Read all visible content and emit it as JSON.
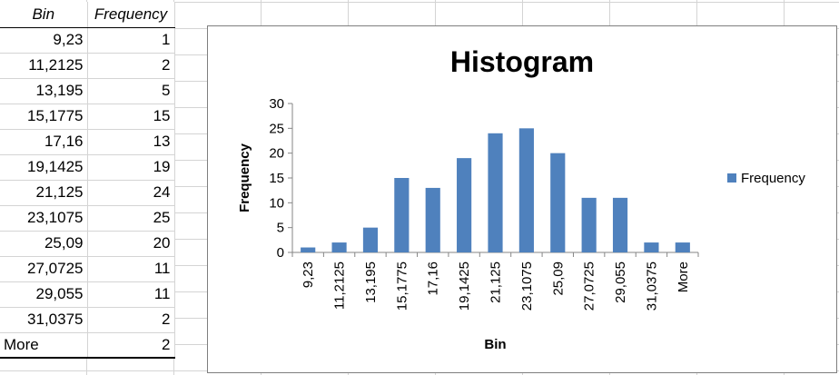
{
  "table": {
    "headers": [
      "Bin",
      "Frequency"
    ],
    "rows": [
      [
        "9,23",
        "1"
      ],
      [
        "11,2125",
        "2"
      ],
      [
        "13,195",
        "5"
      ],
      [
        "15,1775",
        "15"
      ],
      [
        "17,16",
        "13"
      ],
      [
        "19,1425",
        "19"
      ],
      [
        "21,125",
        "24"
      ],
      [
        "23,1075",
        "25"
      ],
      [
        "25,09",
        "20"
      ],
      [
        "27,0725",
        "11"
      ],
      [
        "29,055",
        "11"
      ],
      [
        "31,0375",
        "2"
      ],
      [
        "More",
        "2"
      ]
    ]
  },
  "chart_data": {
    "type": "bar",
    "title": "Histogram",
    "xlabel": "Bin",
    "ylabel": "Frequency",
    "categories": [
      "9,23",
      "11,2125",
      "13,195",
      "15,1775",
      "17,16",
      "19,1425",
      "21,125",
      "23,1075",
      "25,09",
      "27,0725",
      "29,055",
      "31,0375",
      "More"
    ],
    "series": [
      {
        "name": "Frequency",
        "values": [
          1,
          2,
          5,
          15,
          13,
          19,
          24,
          25,
          20,
          11,
          11,
          2,
          2
        ],
        "color": "#4f81bd"
      }
    ],
    "ylim": [
      0,
      30
    ],
    "yticks": [
      0,
      5,
      10,
      15,
      20,
      25,
      30
    ],
    "legend": "right",
    "grid": false
  }
}
